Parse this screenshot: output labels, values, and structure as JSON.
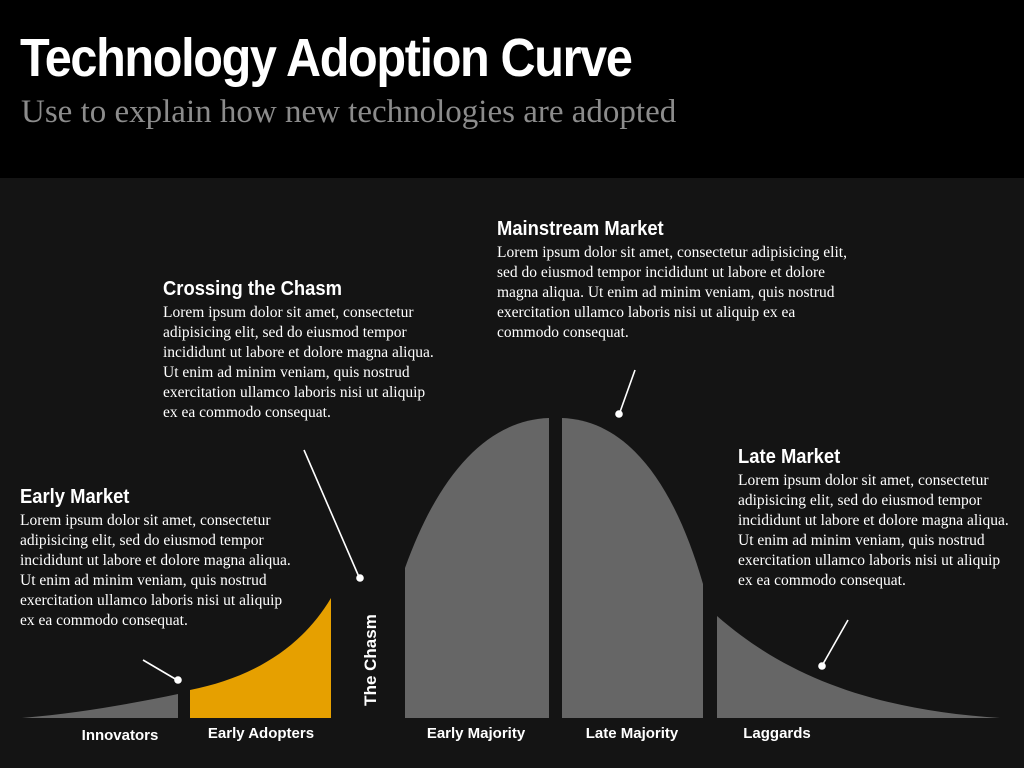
{
  "header": {
    "title": "Technology Adoption Curve",
    "subtitle": "Use to explain how new technologies are adopted"
  },
  "callouts": {
    "early_market": {
      "heading": "Early Market",
      "body": "Lorem ipsum dolor sit amet, consectetur adipisicing elit, sed do eiusmod tempor incididunt ut labore et dolore magna aliqua. Ut enim ad minim veniam, quis nostrud exercitation ullamco laboris nisi ut aliquip ex ea commodo consequat."
    },
    "crossing_the_chasm": {
      "heading": "Crossing the Chasm",
      "body": "Lorem ipsum dolor sit amet, consectetur adipisicing elit, sed do eiusmod tempor incididunt ut labore et dolore magna aliqua. Ut enim ad minim veniam, quis nostrud exercitation ullamco laboris nisi ut aliquip ex ea commodo consequat."
    },
    "mainstream_market": {
      "heading": "Mainstream Market",
      "body": "Lorem ipsum dolor sit amet, consectetur adipisicing elit, sed do eiusmod tempor incididunt ut labore et dolore magna aliqua. Ut enim ad minim veniam, quis nostrud exercitation ullamco laboris nisi ut aliquip ex ea commodo consequat."
    },
    "late_market": {
      "heading": "Late Market",
      "body": "Lorem ipsum dolor sit amet, consectetur adipisicing elit, sed do eiusmod tempor incididunt ut labore et dolore magna aliqua. Ut enim ad minim veniam, quis nostrud exercitation ullamco laboris nisi ut aliquip ex ea commodo consequat."
    }
  },
  "segments": {
    "innovators": "Innovators",
    "early_adopters": "Early Adopters",
    "chasm": "The Chasm",
    "early_majority": "Early Majority",
    "late_majority": "Late Majority",
    "laggards": "Laggards"
  },
  "colors": {
    "background": "#141414",
    "header_background": "#000000",
    "curve_gray": "#666666",
    "early_adopters_highlight": "#e6a000",
    "subtitle_gray": "#8c8c8c"
  }
}
